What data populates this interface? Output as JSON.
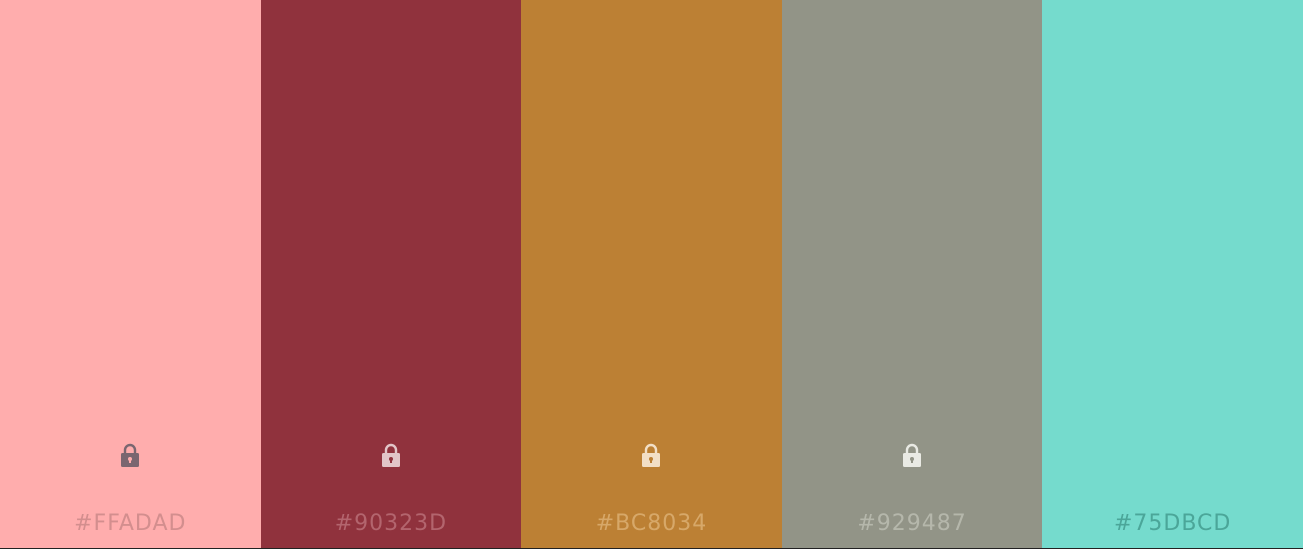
{
  "swatches": [
    {
      "hex": "#FFADAD",
      "color": "#FFADAD",
      "text_color": "#D38E8E",
      "locked": true,
      "icon": "lock-icon",
      "icon_color": "#7A6670"
    },
    {
      "hex": "#90323D",
      "color": "#90323D",
      "text_color": "#B3656E",
      "locked": true,
      "icon": "lock-icon",
      "icon_color": "#E2C5C8"
    },
    {
      "hex": "#BC8034",
      "color": "#BC8034",
      "text_color": "#D7A869",
      "locked": true,
      "icon": "lock-icon",
      "icon_color": "#F2DFC6"
    },
    {
      "hex": "#929487",
      "color": "#929487",
      "text_color": "#B5B7AB",
      "locked": true,
      "icon": "lock-icon",
      "icon_color": "#E9EAE4"
    },
    {
      "hex": "#75DBCD",
      "color": "#75DBCD",
      "text_color": "#4BA699",
      "locked": false,
      "icon": "lock-icon",
      "icon_color": ""
    }
  ]
}
